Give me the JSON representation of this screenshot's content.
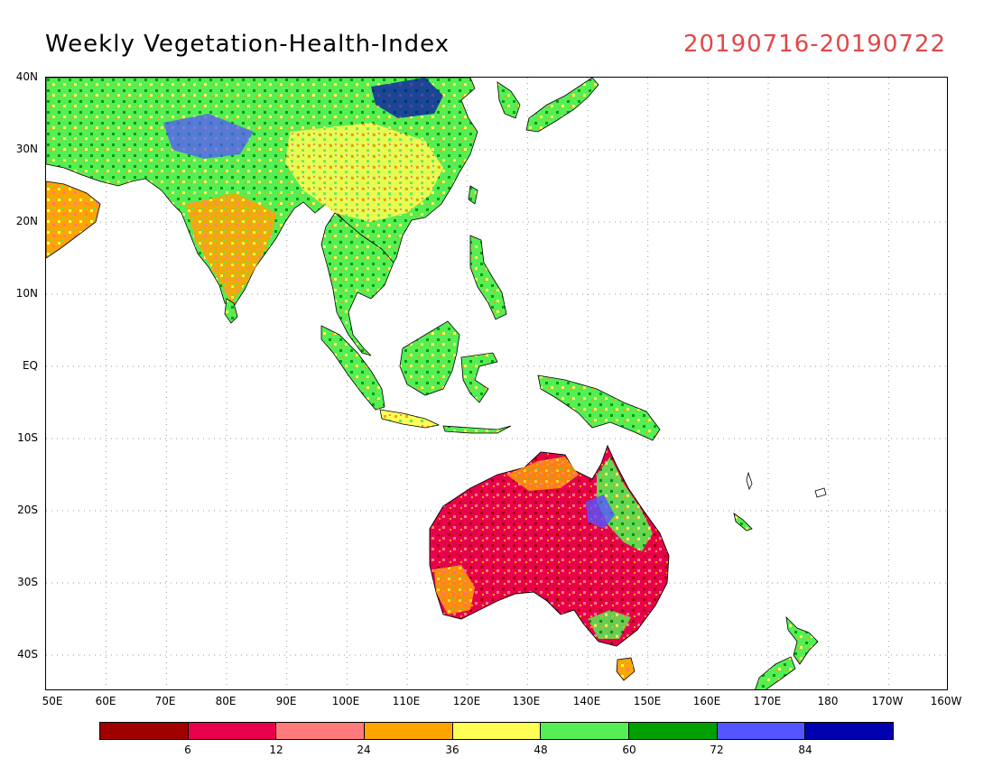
{
  "title": "Weekly Vegetation-Health-Index",
  "date_range": "20190716-20190722",
  "map": {
    "projection": "equirectangular",
    "lon_range": [
      50,
      200
    ],
    "lat_range": [
      -45,
      40
    ],
    "lat_labels": [
      "40N",
      "30N",
      "20N",
      "10N",
      "EQ",
      "10S",
      "20S",
      "30S",
      "40S"
    ],
    "lon_labels": [
      "50E",
      "60E",
      "70E",
      "80E",
      "90E",
      "100E",
      "110E",
      "120E",
      "130E",
      "140E",
      "150E",
      "160E",
      "170E",
      "180",
      "170W",
      "160W"
    ],
    "grid": "dotted"
  },
  "colorbar": {
    "colors": [
      "#a00000",
      "#e8004b",
      "#ff7b7b",
      "#ffa500",
      "#ffff55",
      "#55ee55",
      "#00a000",
      "#5555ff",
      "#0000b0"
    ],
    "labels": [
      "6",
      "12",
      "24",
      "36",
      "48",
      "60",
      "72",
      "84"
    ]
  }
}
